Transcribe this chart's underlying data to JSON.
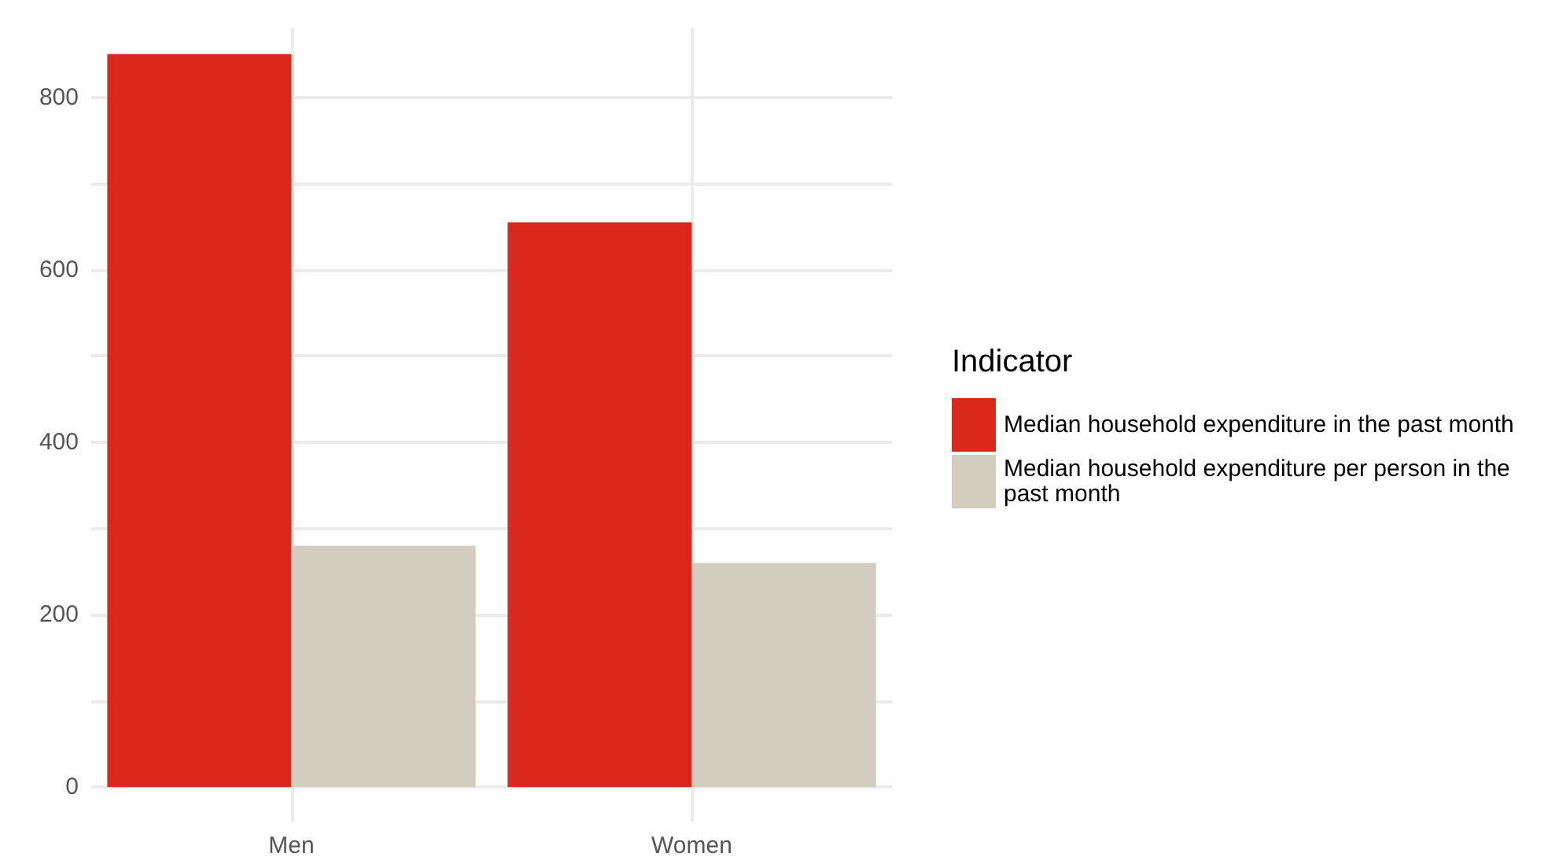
{
  "chart_data": {
    "type": "bar",
    "categories": [
      "Men",
      "Women"
    ],
    "series": [
      {
        "name": "Median household expenditure in the past month",
        "color": "#da291c",
        "values": [
          850,
          655
        ]
      },
      {
        "name": "Median household expenditure per person in the past month",
        "color": "#d3cdc0",
        "values": [
          280,
          260
        ]
      }
    ],
    "ylim": [
      -40,
      880
    ],
    "yticks": [
      0,
      {
        "value": 100,
        "label": null
      },
      200,
      {
        "value": 300,
        "label": null
      },
      400,
      {
        "value": 500,
        "label": null
      },
      600,
      {
        "value": 700,
        "label": null
      },
      800
    ],
    "grid": true,
    "legend": "right",
    "legend_title": "Indicator"
  }
}
